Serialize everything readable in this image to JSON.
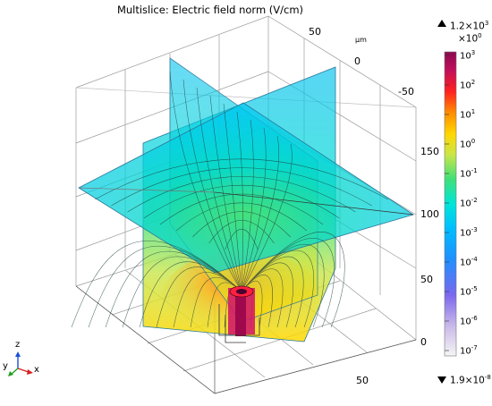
{
  "title": "Multislice: Electric field norm (V/cm)",
  "axes": {
    "unit": "µm",
    "y_ticks": [
      "50",
      "0",
      "-50"
    ],
    "z_ticks": [
      "150",
      "100",
      "50",
      "0"
    ],
    "x_ticks": [
      "50"
    ]
  },
  "colorbar": {
    "max_label": "1.2×10",
    "max_exp": "3",
    "scale_label": "×10",
    "scale_exp": "0",
    "min_label": "1.9×10",
    "min_exp": "-8",
    "tick_base": "10",
    "tick_exps": [
      "3",
      "2",
      "1",
      "0",
      "-1",
      "-2",
      "-3",
      "-4",
      "-5",
      "-6",
      "-7"
    ],
    "scale": "log",
    "colors": [
      "#f5f5f5",
      "#c8b8e8",
      "#7b68ee",
      "#1e90ff",
      "#00bfff",
      "#00e5d8",
      "#3ee07a",
      "#c8e64a",
      "#ffd700",
      "#ff8c00",
      "#ff2020",
      "#c0105a",
      "#8b0a50"
    ]
  },
  "triad": {
    "x": "x",
    "y": "y",
    "z": "z"
  }
}
